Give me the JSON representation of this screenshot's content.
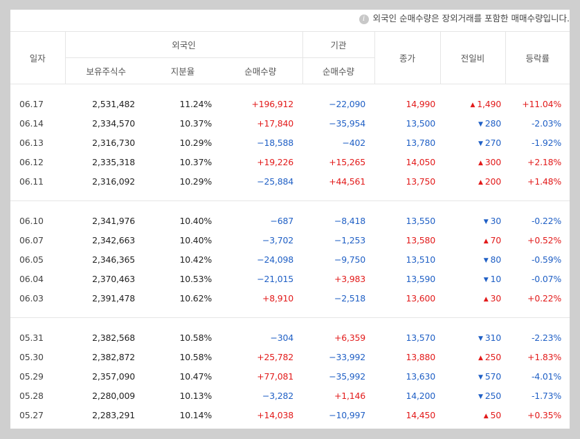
{
  "notice": {
    "icon": "info-icon",
    "text": "외국인 순매수량은 장외거래를 포함한 매매수량입니다."
  },
  "headers": {
    "date": "일자",
    "foreign": "외국인",
    "institution": "기관",
    "close": "종가",
    "diff": "전일비",
    "rate": "등락률",
    "holdings": "보유주식수",
    "ratio": "지분율",
    "foreign_net": "순매수량",
    "inst_net": "순매수량"
  },
  "colors": {
    "up": "#e21a1a",
    "down": "#1f5fc5"
  },
  "groups": [
    {
      "rows": [
        {
          "date": "06.17",
          "holdings": "2,531,482",
          "ratio": "11.24%",
          "foreign_net": "+196,912",
          "inst_net": "−22,090",
          "close": "14,990",
          "dir": "up",
          "diff": "1,490",
          "rate": "+11.04%"
        },
        {
          "date": "06.14",
          "holdings": "2,334,570",
          "ratio": "10.37%",
          "foreign_net": "+17,840",
          "inst_net": "−35,954",
          "close": "13,500",
          "dir": "down",
          "diff": "280",
          "rate": "-2.03%"
        },
        {
          "date": "06.13",
          "holdings": "2,316,730",
          "ratio": "10.29%",
          "foreign_net": "−18,588",
          "inst_net": "−402",
          "close": "13,780",
          "dir": "down",
          "diff": "270",
          "rate": "-1.92%"
        },
        {
          "date": "06.12",
          "holdings": "2,335,318",
          "ratio": "10.37%",
          "foreign_net": "+19,226",
          "inst_net": "+15,265",
          "close": "14,050",
          "dir": "up",
          "diff": "300",
          "rate": "+2.18%"
        },
        {
          "date": "06.11",
          "holdings": "2,316,092",
          "ratio": "10.29%",
          "foreign_net": "−25,884",
          "inst_net": "+44,561",
          "close": "13,750",
          "dir": "up",
          "diff": "200",
          "rate": "+1.48%"
        }
      ]
    },
    {
      "rows": [
        {
          "date": "06.10",
          "holdings": "2,341,976",
          "ratio": "10.40%",
          "foreign_net": "−687",
          "inst_net": "−8,418",
          "close": "13,550",
          "dir": "down",
          "diff": "30",
          "rate": "-0.22%"
        },
        {
          "date": "06.07",
          "holdings": "2,342,663",
          "ratio": "10.40%",
          "foreign_net": "−3,702",
          "inst_net": "−1,253",
          "close": "13,580",
          "dir": "up",
          "diff": "70",
          "rate": "+0.52%"
        },
        {
          "date": "06.05",
          "holdings": "2,346,365",
          "ratio": "10.42%",
          "foreign_net": "−24,098",
          "inst_net": "−9,750",
          "close": "13,510",
          "dir": "down",
          "diff": "80",
          "rate": "-0.59%"
        },
        {
          "date": "06.04",
          "holdings": "2,370,463",
          "ratio": "10.53%",
          "foreign_net": "−21,015",
          "inst_net": "+3,983",
          "close": "13,590",
          "dir": "down",
          "diff": "10",
          "rate": "-0.07%"
        },
        {
          "date": "06.03",
          "holdings": "2,391,478",
          "ratio": "10.62%",
          "foreign_net": "+8,910",
          "inst_net": "−2,518",
          "close": "13,600",
          "dir": "up",
          "diff": "30",
          "rate": "+0.22%"
        }
      ]
    },
    {
      "rows": [
        {
          "date": "05.31",
          "holdings": "2,382,568",
          "ratio": "10.58%",
          "foreign_net": "−304",
          "inst_net": "+6,359",
          "close": "13,570",
          "dir": "down",
          "diff": "310",
          "rate": "-2.23%"
        },
        {
          "date": "05.30",
          "holdings": "2,382,872",
          "ratio": "10.58%",
          "foreign_net": "+25,782",
          "inst_net": "−33,992",
          "close": "13,880",
          "dir": "up",
          "diff": "250",
          "rate": "+1.83%"
        },
        {
          "date": "05.29",
          "holdings": "2,357,090",
          "ratio": "10.47%",
          "foreign_net": "+77,081",
          "inst_net": "−35,992",
          "close": "13,630",
          "dir": "down",
          "diff": "570",
          "rate": "-4.01%"
        },
        {
          "date": "05.28",
          "holdings": "2,280,009",
          "ratio": "10.13%",
          "foreign_net": "−3,282",
          "inst_net": "+1,146",
          "close": "14,200",
          "dir": "down",
          "diff": "250",
          "rate": "-1.73%"
        },
        {
          "date": "05.27",
          "holdings": "2,283,291",
          "ratio": "10.14%",
          "foreign_net": "+14,038",
          "inst_net": "−10,997",
          "close": "14,450",
          "dir": "up",
          "diff": "50",
          "rate": "+0.35%"
        }
      ]
    }
  ]
}
